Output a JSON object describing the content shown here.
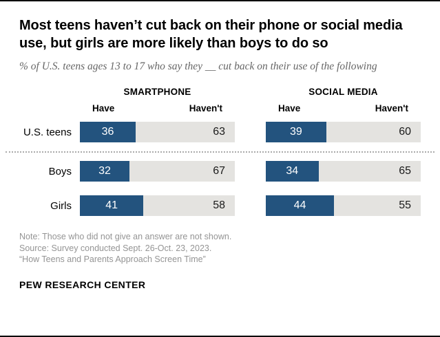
{
  "title": "Most teens haven’t cut back on their phone or social media use, but girls are more likely than boys to do so",
  "subtitle": "% of U.S. teens ages 13 to 17 who say they __ cut back on their use of the following",
  "chart_data": {
    "type": "bar",
    "orientation": "horizontal",
    "unit": "%",
    "xlim": [
      0,
      100
    ],
    "legend": "none",
    "group_headers": [
      {
        "title": "SMARTPHONE",
        "col_left": "Have",
        "col_right": "Haven't"
      },
      {
        "title": "SOCIAL MEDIA",
        "col_left": "Have",
        "col_right": "Haven't"
      }
    ],
    "categories": [
      "U.S. teens",
      "Boys",
      "Girls"
    ],
    "rows": [
      {
        "label": "U.S. teens",
        "smartphone": {
          "have": 36,
          "havent": 63
        },
        "social_media": {
          "have": 39,
          "havent": 60
        }
      },
      {
        "label": "Boys",
        "smartphone": {
          "have": 32,
          "havent": 67
        },
        "social_media": {
          "have": 34,
          "havent": 65
        }
      },
      {
        "label": "Girls",
        "smartphone": {
          "have": 41,
          "havent": 58
        },
        "social_media": {
          "have": 44,
          "havent": 55
        }
      }
    ]
  },
  "notes": {
    "line1": "Note: Those who did not give an answer are not shown.",
    "line2": "Source: Survey conducted Sept. 26-Oct. 23, 2023.",
    "line3": "“How Teens and Parents Approach Screen Time”"
  },
  "footer": "PEW RESEARCH CENTER",
  "colors": {
    "have_bar": "#23537E",
    "havent_bar": "#e4e3e0",
    "note_text": "#949494"
  }
}
